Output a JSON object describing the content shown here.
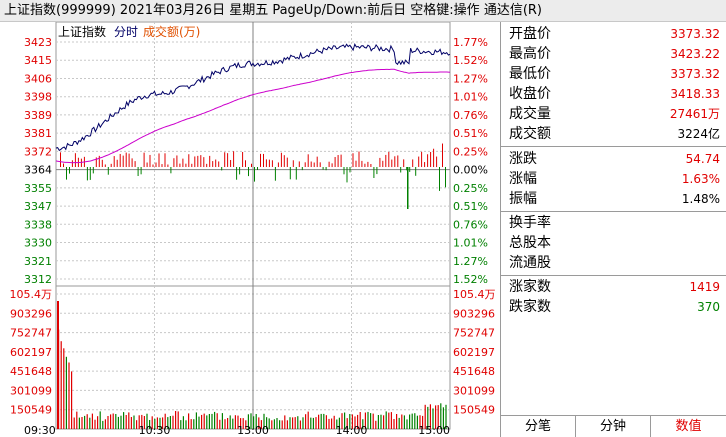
{
  "title_bar": {
    "text": "上证指数(999999)  2021年03月26日 星期五 PageUp/Down:前后日 空格键:操作 通达信(R)"
  },
  "legend": {
    "name": "上证指数",
    "mode": "分时",
    "series": "成交额(万)"
  },
  "price_axis": {
    "left": [
      "3423",
      "3415",
      "3406",
      "3398",
      "3389",
      "3381",
      "3372",
      "3364",
      "3355",
      "3347",
      "3338",
      "3330",
      "3321",
      "3312"
    ],
    "right": [
      "1.77%",
      "1.52%",
      "1.27%",
      "1.01%",
      "0.76%",
      "0.51%",
      "0.25%",
      "0.00%",
      "0.25%",
      "0.51%",
      "0.76%",
      "1.01%",
      "1.27%",
      "1.52%"
    ]
  },
  "volume_axis": {
    "left": [
      "105.4万",
      "903296",
      "752747",
      "602197",
      "451648",
      "301099",
      "150549"
    ],
    "right": [
      "105.4万",
      "903296",
      "752747",
      "602197",
      "451648",
      "301099",
      "150549"
    ]
  },
  "time_axis": [
    "09:30",
    "10:30",
    "13:00",
    "14:00",
    "15:00"
  ],
  "info": {
    "open": {
      "label": "开盘价",
      "value": "3373.32"
    },
    "high": {
      "label": "最高价",
      "value": "3423.22"
    },
    "low": {
      "label": "最低价",
      "value": "3373.32"
    },
    "close": {
      "label": "收盘价",
      "value": "3418.33"
    },
    "volume": {
      "label": "成交量",
      "value": "27461万"
    },
    "amount": {
      "label": "成交额",
      "value": "3224亿"
    },
    "change": {
      "label": "涨跌",
      "value": "54.74"
    },
    "change_pct": {
      "label": "涨幅",
      "value": "1.63%"
    },
    "amplitude": {
      "label": "振幅",
      "value": "1.48%"
    },
    "turnover": {
      "label": "换手率",
      "value": ""
    },
    "total_shares": {
      "label": "总股本",
      "value": ""
    },
    "float_shares": {
      "label": "流通股",
      "value": ""
    },
    "advancers": {
      "label": "涨家数",
      "value": "1419"
    },
    "decliners": {
      "label": "跌家数",
      "value": "370"
    }
  },
  "tabs": [
    "分笔",
    "分钟",
    "数值"
  ],
  "colors": {
    "up": "#e00000",
    "down": "#008000",
    "price_line": "#000066",
    "avg_line": "#cc00cc",
    "grid": "#c0c0c0"
  },
  "chart_data": {
    "type": "line",
    "x": [
      "09:30",
      "10:30",
      "13:00",
      "14:00",
      "15:00"
    ],
    "series": [
      {
        "name": "上证指数",
        "values": [
          3373.32,
          3398.5,
          3413.0,
          3420.5,
          3418.33
        ]
      }
    ],
    "ylim": [
      3308.0,
      3427.0
    ],
    "base": 3363.59
  }
}
